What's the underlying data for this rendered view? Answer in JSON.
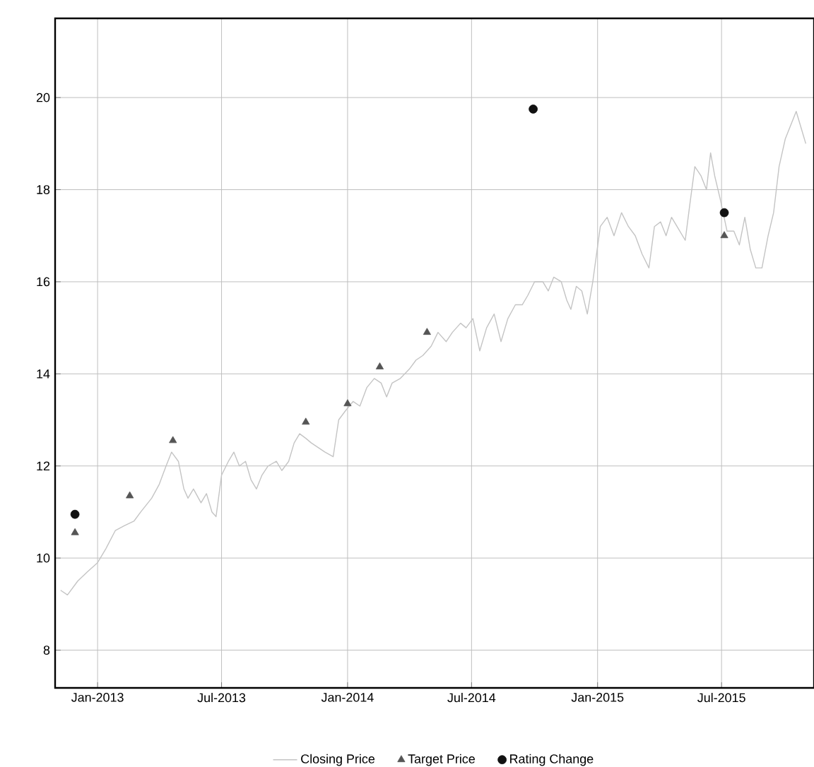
{
  "chart_data": {
    "type": "line",
    "xlim": [
      "2012-10-31",
      "2015-11-13"
    ],
    "ylim": [
      7.18,
      21.72
    ],
    "xticks": [
      {
        "value": "2013-01-01",
        "label": "Jan-2013"
      },
      {
        "value": "2013-07-01",
        "label": "Jul-2013"
      },
      {
        "value": "2014-01-01",
        "label": "Jan-2014"
      },
      {
        "value": "2014-07-01",
        "label": "Jul-2014"
      },
      {
        "value": "2015-01-01",
        "label": "Jan-2015"
      },
      {
        "value": "2015-07-01",
        "label": "Jul-2015"
      }
    ],
    "yticks": [
      8,
      10,
      12,
      14,
      16,
      18,
      20
    ],
    "grid": true,
    "legend": "bottom",
    "series": [
      {
        "name": "Closing Price",
        "marker": "none",
        "color": "#c4c4c4",
        "x": [
          "2012-11-08",
          "2012-11-18",
          "2012-12-03",
          "2012-12-17",
          "2013-01-01",
          "2013-01-13",
          "2013-01-27",
          "2013-02-09",
          "2013-02-23",
          "2013-03-05",
          "2013-03-21",
          "2013-04-01",
          "2013-04-11",
          "2013-04-19",
          "2013-04-29",
          "2013-05-07",
          "2013-05-13",
          "2013-05-21",
          "2013-06-01",
          "2013-06-09",
          "2013-06-17",
          "2013-06-23",
          "2013-07-01",
          "2013-07-11",
          "2013-07-19",
          "2013-07-27",
          "2013-08-05",
          "2013-08-13",
          "2013-08-21",
          "2013-08-29",
          "2013-09-07",
          "2013-09-19",
          "2013-09-27",
          "2013-10-07",
          "2013-10-15",
          "2013-10-23",
          "2013-11-01",
          "2013-11-09",
          "2013-11-19",
          "2013-11-29",
          "2013-12-11",
          "2013-12-19",
          "2013-12-29",
          "2014-01-09",
          "2014-01-19",
          "2014-01-29",
          "2014-02-09",
          "2014-02-19",
          "2014-02-27",
          "2014-03-07",
          "2014-03-19",
          "2014-04-01",
          "2014-04-11",
          "2014-04-21",
          "2014-05-03",
          "2014-05-13",
          "2014-05-25",
          "2014-06-03",
          "2014-06-15",
          "2014-06-23",
          "2014-07-03",
          "2014-07-13",
          "2014-07-23",
          "2014-08-03",
          "2014-08-13",
          "2014-08-23",
          "2014-09-03",
          "2014-09-13",
          "2014-09-21",
          "2014-10-01",
          "2014-10-13",
          "2014-10-21",
          "2014-10-29",
          "2014-11-09",
          "2014-11-17",
          "2014-11-23",
          "2014-12-01",
          "2014-12-09",
          "2014-12-17",
          "2014-12-25",
          "2015-01-05",
          "2015-01-15",
          "2015-01-25",
          "2015-02-05",
          "2015-02-15",
          "2015-02-25",
          "2015-03-07",
          "2015-03-17",
          "2015-03-25",
          "2015-04-03",
          "2015-04-11",
          "2015-04-19",
          "2015-04-27",
          "2015-05-09",
          "2015-05-15",
          "2015-05-23",
          "2015-06-01",
          "2015-06-09",
          "2015-06-15",
          "2015-06-21",
          "2015-06-29",
          "2015-07-09",
          "2015-07-19",
          "2015-07-27",
          "2015-08-04",
          "2015-08-12",
          "2015-08-20",
          "2015-08-29",
          "2015-09-07",
          "2015-09-15",
          "2015-09-23",
          "2015-10-02",
          "2015-10-10",
          "2015-10-18",
          "2015-10-26",
          "2015-11-01"
        ],
        "values": [
          9.3,
          9.2,
          9.5,
          9.7,
          9.9,
          10.2,
          10.6,
          10.7,
          10.8,
          11.0,
          11.3,
          11.6,
          12.0,
          12.3,
          12.1,
          11.5,
          11.3,
          11.5,
          11.2,
          11.4,
          11.0,
          10.9,
          11.8,
          12.1,
          12.3,
          12.0,
          12.1,
          11.7,
          11.5,
          11.8,
          12.0,
          12.1,
          11.9,
          12.1,
          12.5,
          12.7,
          12.6,
          12.5,
          12.4,
          12.3,
          12.2,
          13.0,
          13.2,
          13.4,
          13.3,
          13.7,
          13.9,
          13.8,
          13.5,
          13.8,
          13.9,
          14.1,
          14.3,
          14.4,
          14.6,
          14.9,
          14.7,
          14.9,
          15.1,
          15.0,
          15.2,
          14.5,
          15.0,
          15.3,
          14.7,
          15.2,
          15.5,
          15.5,
          15.7,
          16.0,
          16.0,
          15.8,
          16.1,
          16.0,
          15.6,
          15.4,
          15.9,
          15.8,
          15.3,
          16.0,
          17.2,
          17.4,
          17.0,
          17.5,
          17.2,
          17.0,
          16.6,
          16.3,
          17.2,
          17.3,
          17.0,
          17.4,
          17.2,
          16.9,
          17.6,
          18.5,
          18.3,
          18.0,
          18.8,
          18.3,
          17.8,
          17.1,
          17.1,
          16.8,
          17.4,
          16.7,
          16.3,
          16.3,
          17.0,
          17.5,
          18.5,
          19.1,
          19.4,
          19.7,
          19.3,
          19.0
        ]
      },
      {
        "name": "Target Price",
        "type": "scatter",
        "marker": "triangle",
        "color": "#555555",
        "x": [
          "2012-11-29",
          "2013-02-17",
          "2013-04-21",
          "2013-11-01",
          "2014-01-01",
          "2014-02-17",
          "2014-04-27",
          "2015-07-05"
        ],
        "values": [
          10.55,
          11.35,
          12.55,
          12.95,
          13.35,
          14.15,
          14.9,
          17.0
        ]
      },
      {
        "name": "Rating Change",
        "type": "scatter",
        "marker": "circle",
        "color": "#111111",
        "x": [
          "2012-11-29",
          "2014-09-29",
          "2015-07-05"
        ],
        "values": [
          10.95,
          19.75,
          17.5
        ]
      }
    ]
  }
}
